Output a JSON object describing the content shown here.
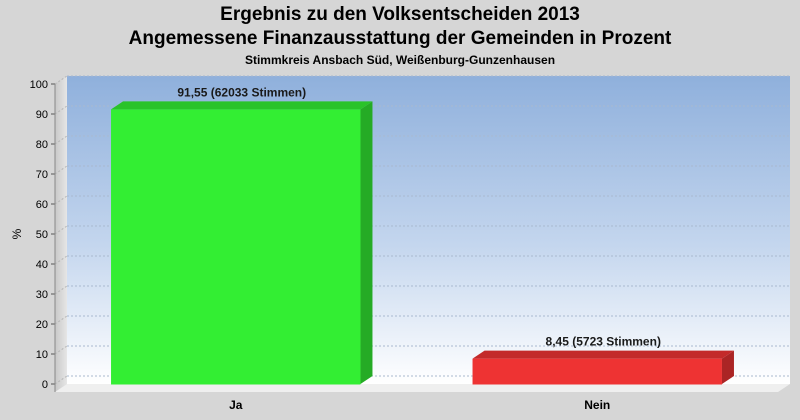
{
  "chart_data": {
    "type": "bar",
    "title": "Ergebnis zu den Volksentscheiden 2013",
    "subtitle": "Angemessene Finanzausstattung der Gemeinden in Prozent",
    "subtitle2": "Stimmkreis Ansbach Süd, Weißenburg-Gunzenhausen",
    "ylabel": "%",
    "ylim": [
      0,
      100
    ],
    "yticks": [
      0,
      10,
      20,
      30,
      40,
      50,
      60,
      70,
      80,
      90,
      100
    ],
    "categories": [
      "Ja",
      "Nein"
    ],
    "values": [
      91.55,
      8.45
    ],
    "data_labels": [
      "91,55 (62033 Stimmen)",
      "8,45 (5723 Stimmen)"
    ],
    "colors": [
      "#33ee33",
      "#ee3333"
    ],
    "grid": true
  }
}
